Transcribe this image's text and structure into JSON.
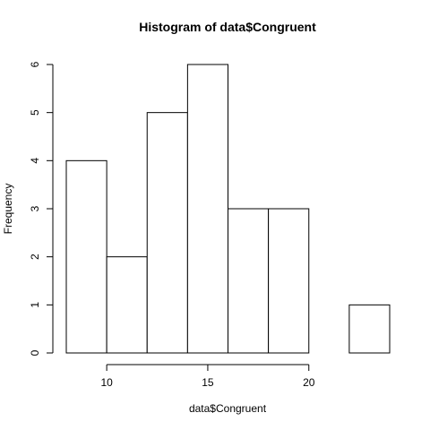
{
  "chart_data": {
    "type": "bar",
    "title": "Histogram of data$Congruent",
    "xlabel": "data$Congruent",
    "ylabel": "Frequency",
    "bins": [
      {
        "start": 8,
        "end": 10,
        "count": 4
      },
      {
        "start": 10,
        "end": 12,
        "count": 2
      },
      {
        "start": 12,
        "end": 14,
        "count": 5
      },
      {
        "start": 14,
        "end": 16,
        "count": 6
      },
      {
        "start": 16,
        "end": 18,
        "count": 3
      },
      {
        "start": 18,
        "end": 20,
        "count": 3
      },
      {
        "start": 20,
        "end": 22,
        "count": 0
      },
      {
        "start": 22,
        "end": 24,
        "count": 1
      }
    ],
    "x_ticks": [
      10,
      15,
      20
    ],
    "y_ticks": [
      0,
      1,
      2,
      3,
      4,
      5,
      6
    ],
    "xlim": [
      8,
      24
    ],
    "ylim": [
      0,
      6
    ],
    "grid": false,
    "colors": {
      "bar_fill": "#ffffff",
      "bar_stroke": "#000000"
    }
  }
}
